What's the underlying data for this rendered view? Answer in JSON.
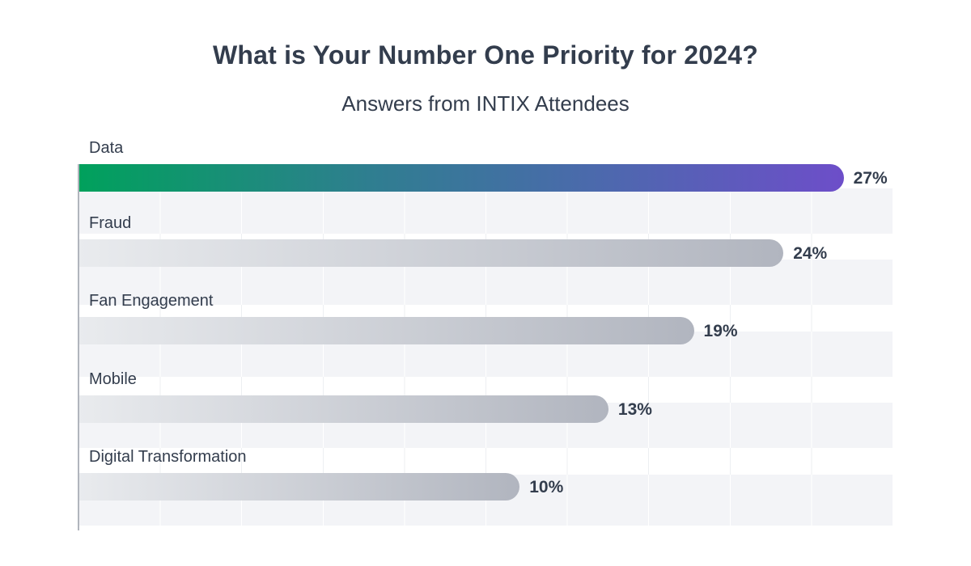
{
  "header": {
    "title": "What is Your Number One Priority for 2024?",
    "subtitle": "Answers from INTIX Attendees"
  },
  "chart_data": {
    "type": "bar",
    "orientation": "horizontal",
    "title": "What is Your Number One Priority for 2024?",
    "subtitle": "Answers from INTIX Attendees",
    "categories": [
      "Data",
      "Fraud",
      "Fan Engagement",
      "Mobile",
      "Digital Transformation"
    ],
    "values": [
      27,
      24,
      19,
      13,
      10
    ],
    "unit": "percent",
    "grid": true,
    "legend": false,
    "value_labels_position": "end-of-bar",
    "bars": [
      {
        "label": "Data",
        "value": 27,
        "display": "27%",
        "highlight": true,
        "bar_length_pct": 94.0
      },
      {
        "label": "Fraud",
        "value": 24,
        "display": "24%",
        "highlight": false,
        "bar_length_pct": 86.6
      },
      {
        "label": "Fan Engagement",
        "value": 19,
        "display": "19%",
        "highlight": false,
        "bar_length_pct": 75.6
      },
      {
        "label": "Mobile",
        "value": 13,
        "display": "13%",
        "highlight": false,
        "bar_length_pct": 65.1
      },
      {
        "label": "Digital Transformation",
        "value": 10,
        "display": "10%",
        "highlight": false,
        "bar_length_pct": 54.2
      }
    ],
    "colors": {
      "highlight_gradient": [
        "#00a15c",
        "#2f7e90",
        "#4c69ad",
        "#6d4ec9"
      ],
      "gray_bar_gradient": [
        "#e9ebee",
        "#b1b5bf"
      ],
      "row_stripe": "#f3f4f7",
      "gridline_on_white": "#edeff2",
      "gridline_on_stripe": "#ffffff",
      "axis_line": "#b1b5bd",
      "text": "#333d4d"
    }
  }
}
